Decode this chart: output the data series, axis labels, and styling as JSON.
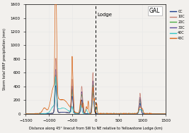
{
  "title": "GAL",
  "xlabel": "Distance along 45° linecut from SW to NE relative to Yellowstone Lodge (km)",
  "ylabel": "Storm total WRF precipitation (mm)",
  "xlim": [
    -1500,
    1500
  ],
  "ylim": [
    0,
    1600
  ],
  "yticks": [
    0,
    200,
    400,
    600,
    800,
    1000,
    1200,
    1400,
    1600
  ],
  "xticks": [
    -1500,
    -1000,
    -500,
    0,
    500,
    1000,
    1500
  ],
  "lodge_x": 0,
  "lodge_label": "Lodge",
  "legend_labels": [
    "0C",
    "10C",
    "20C",
    "30C",
    "40C",
    "45C"
  ],
  "line_colors": [
    "#1a3a8a",
    "#c47b6e",
    "#4aaa44",
    "#5a4a99",
    "#30c4c4",
    "#d86010"
  ],
  "background_color": "#f2f0ed",
  "grid_color": "#e8e8e8",
  "font_size": 5.5
}
